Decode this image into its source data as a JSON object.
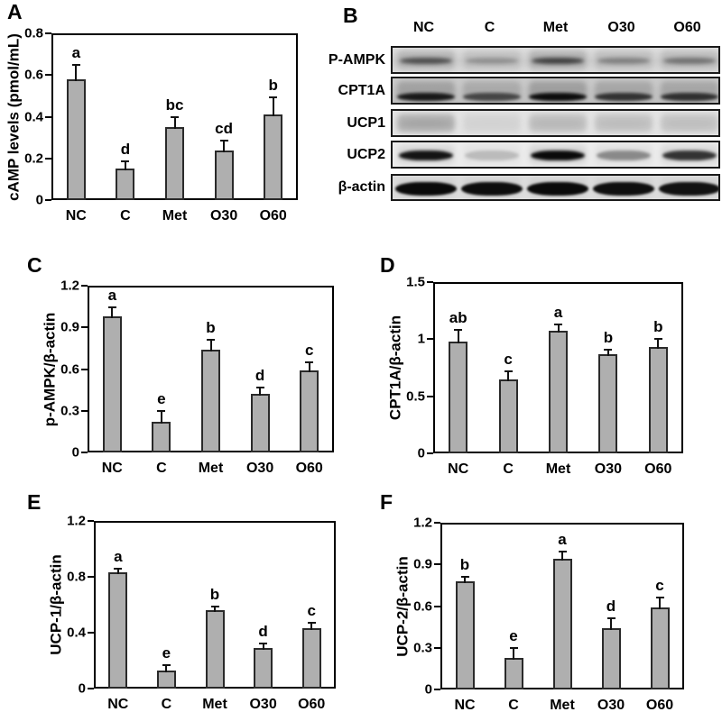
{
  "figure_colors": {
    "background": "#ffffff",
    "bar_fill": "#afafaf",
    "bar_border": "#2a2a2a",
    "axis": "#000000",
    "text": "#000000"
  },
  "panels": {
    "A": {
      "label": "A"
    },
    "B": {
      "label": "B"
    },
    "C": {
      "label": "C"
    },
    "D": {
      "label": "D"
    },
    "E": {
      "label": "E"
    },
    "F": {
      "label": "F"
    }
  },
  "chart_data": [
    {
      "panel": "A",
      "type": "bar",
      "title": "",
      "ylabel": "cAMP levels (pmol/mL)",
      "xlabel": "",
      "categories": [
        "NC",
        "C",
        "Met",
        "O30",
        "O60"
      ],
      "values": [
        0.58,
        0.15,
        0.35,
        0.24,
        0.41
      ],
      "errors": [
        0.07,
        0.035,
        0.05,
        0.045,
        0.085
      ],
      "sig_letters": [
        "a",
        "d",
        "bc",
        "cd",
        "b"
      ],
      "ylim": [
        0,
        0.8
      ],
      "ytick_values": [
        0,
        0.2,
        0.4,
        0.6,
        0.8
      ],
      "ytick_labels": [
        "0",
        "0.2",
        "0.4",
        "0.6",
        "0.8"
      ],
      "grid": false,
      "legend": null
    },
    {
      "panel": "C",
      "type": "bar",
      "title": "",
      "ylabel": "p-AMPK/β-actin",
      "xlabel": "",
      "categories": [
        "NC",
        "C",
        "Met",
        "O30",
        "O60"
      ],
      "values": [
        0.98,
        0.22,
        0.74,
        0.42,
        0.59
      ],
      "errors": [
        0.065,
        0.08,
        0.07,
        0.05,
        0.06
      ],
      "sig_letters": [
        "a",
        "e",
        "b",
        "d",
        "c"
      ],
      "ylim": [
        0,
        1.2
      ],
      "ytick_values": [
        0,
        0.3,
        0.6,
        0.9,
        1.2
      ],
      "ytick_labels": [
        "0",
        "0.3",
        "0.6",
        "0.9",
        "1.2"
      ],
      "grid": false,
      "legend": null
    },
    {
      "panel": "D",
      "type": "bar",
      "title": "",
      "ylabel": "CPT1A/β-actin",
      "xlabel": "",
      "categories": [
        "NC",
        "C",
        "Met",
        "O30",
        "O60"
      ],
      "values": [
        0.98,
        0.65,
        1.07,
        0.87,
        0.93
      ],
      "errors": [
        0.1,
        0.07,
        0.06,
        0.04,
        0.07
      ],
      "sig_letters": [
        "ab",
        "c",
        "a",
        "b",
        "b"
      ],
      "ylim": [
        0,
        1.5
      ],
      "ytick_values": [
        0,
        0.5,
        1,
        1.5
      ],
      "ytick_labels": [
        "0",
        "0.5",
        "1",
        "1.5"
      ],
      "grid": false,
      "legend": null
    },
    {
      "panel": "E",
      "type": "bar",
      "title": "",
      "ylabel": "UCP-1/β-actin",
      "xlabel": "",
      "categories": [
        "NC",
        "C",
        "Met",
        "O30",
        "O60"
      ],
      "values": [
        0.83,
        0.13,
        0.56,
        0.29,
        0.43
      ],
      "errors": [
        0.03,
        0.04,
        0.03,
        0.03,
        0.04
      ],
      "sig_letters": [
        "a",
        "e",
        "b",
        "d",
        "c"
      ],
      "ylim": [
        0,
        1.2
      ],
      "ytick_values": [
        0,
        0.4,
        0.8,
        1.2
      ],
      "ytick_labels": [
        "0",
        "0.4",
        "0.8",
        "1.2"
      ],
      "grid": false,
      "legend": null
    },
    {
      "panel": "F",
      "type": "bar",
      "title": "",
      "ylabel": "UCP-2/β-actin",
      "xlabel": "",
      "categories": [
        "NC",
        "C",
        "Met",
        "O30",
        "O60"
      ],
      "values": [
        0.78,
        0.23,
        0.94,
        0.44,
        0.59
      ],
      "errors": [
        0.03,
        0.07,
        0.05,
        0.07,
        0.07
      ],
      "sig_letters": [
        "b",
        "e",
        "a",
        "d",
        "c"
      ],
      "ylim": [
        0,
        1.2
      ],
      "ytick_values": [
        0,
        0.3,
        0.6,
        0.9,
        1.2
      ],
      "ytick_labels": [
        "0",
        "0.3",
        "0.6",
        "0.9",
        "1.2"
      ],
      "grid": false,
      "legend": null
    }
  ],
  "blot": {
    "panel": "B",
    "lane_labels": [
      "NC",
      "C",
      "Met",
      "O30",
      "O60"
    ],
    "rows": [
      {
        "label": "P-AMPK",
        "band_intensities": [
          0.75,
          0.3,
          0.85,
          0.4,
          0.5
        ]
      },
      {
        "label": "CPT1A",
        "band_intensities": [
          0.9,
          0.55,
          1.0,
          0.7,
          0.72
        ]
      },
      {
        "label": "UCP1",
        "band_intensities": [
          0.55,
          0.08,
          0.35,
          0.3,
          0.28
        ]
      },
      {
        "label": "UCP2",
        "band_intensities": [
          0.95,
          0.18,
          1.0,
          0.4,
          0.8
        ]
      },
      {
        "label": "β-actin",
        "band_intensities": [
          1.0,
          0.98,
          1.0,
          0.97,
          0.95
        ]
      }
    ]
  }
}
